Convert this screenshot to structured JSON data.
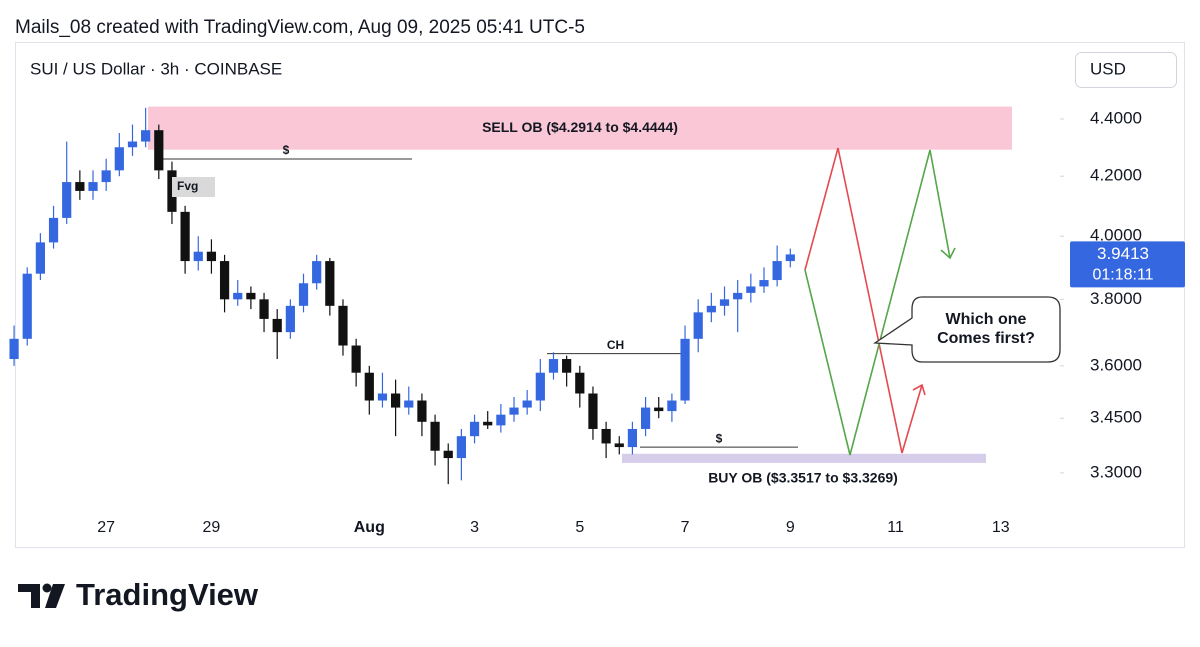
{
  "chart_data": {
    "type": "candlestick",
    "caption": "Mails_08 created with TradingView.com, Aug 09, 2025 05:41 UTC-5",
    "title": "SUI / US Dollar · 3h · COINBASE",
    "currency": "USD",
    "brand": "TradingView",
    "log_scale": true,
    "grid": false,
    "up_color": "#3568e0",
    "down_color": "#111111",
    "categories": [
      null,
      null,
      null,
      null,
      null,
      null,
      null,
      "27",
      null,
      null,
      null,
      null,
      null,
      null,
      null,
      "29",
      null,
      null,
      null,
      null,
      null,
      null,
      null,
      null,
      null,
      null,
      null,
      "Aug",
      null,
      null,
      null,
      null,
      null,
      null,
      null,
      "3",
      null,
      null,
      null,
      null,
      null,
      null,
      null,
      "5",
      null,
      null,
      null,
      null,
      null,
      null,
      null,
      "7",
      null,
      null,
      null,
      null,
      null,
      null,
      null,
      "9",
      null,
      null,
      null,
      null,
      null,
      null,
      null,
      "11",
      null,
      null,
      null,
      null,
      null,
      null,
      null,
      "13",
      null,
      null,
      null,
      null
    ],
    "open": [
      3.62,
      3.68,
      3.88,
      3.98,
      4.06,
      4.18,
      4.15,
      4.18,
      4.22,
      4.3,
      4.32,
      4.36,
      4.22,
      4.08,
      3.92,
      3.95,
      3.92,
      3.8,
      3.82,
      3.8,
      3.74,
      3.7,
      3.78,
      3.85,
      3.92,
      3.78,
      3.66,
      3.58,
      3.5,
      3.52,
      3.48,
      3.5,
      3.44,
      3.36,
      3.34,
      3.4,
      3.44,
      3.43,
      3.46,
      3.48,
      3.5,
      3.58,
      3.62,
      3.58,
      3.52,
      3.42,
      3.38,
      3.37,
      3.42,
      3.48,
      3.47,
      3.5,
      3.68,
      3.76,
      3.78,
      3.8,
      3.82,
      3.84,
      3.86,
      3.92,
      null,
      null,
      null,
      null,
      null,
      null,
      null,
      null,
      null,
      null,
      null,
      null,
      null,
      null,
      null,
      null,
      null,
      null,
      null,
      null
    ],
    "high": [
      3.72,
      3.9,
      4.01,
      4.1,
      4.32,
      4.22,
      4.22,
      4.26,
      4.35,
      4.38,
      4.44,
      4.38,
      4.25,
      4.1,
      4.0,
      3.99,
      3.94,
      3.86,
      3.84,
      3.82,
      3.77,
      3.8,
      3.88,
      3.94,
      3.93,
      3.8,
      3.68,
      3.6,
      3.58,
      3.56,
      3.54,
      3.52,
      3.46,
      3.38,
      3.42,
      3.46,
      3.47,
      3.49,
      3.51,
      3.53,
      3.62,
      3.64,
      3.63,
      3.6,
      3.54,
      3.44,
      3.4,
      3.44,
      3.51,
      3.51,
      3.52,
      3.72,
      3.8,
      3.82,
      3.84,
      3.86,
      3.88,
      3.9,
      3.97,
      3.96,
      null,
      null,
      null,
      null,
      null,
      null,
      null,
      null,
      null,
      null,
      null,
      null,
      null,
      null,
      null,
      null,
      null,
      null,
      null,
      null
    ],
    "low": [
      3.6,
      3.66,
      3.86,
      3.96,
      4.04,
      4.12,
      4.12,
      4.15,
      4.2,
      4.27,
      4.3,
      4.19,
      4.04,
      3.88,
      3.89,
      3.88,
      3.76,
      3.78,
      3.77,
      3.7,
      3.62,
      3.68,
      3.76,
      3.83,
      3.75,
      3.63,
      3.54,
      3.46,
      3.48,
      3.4,
      3.46,
      3.4,
      3.32,
      3.27,
      3.28,
      3.38,
      3.42,
      3.41,
      3.44,
      3.46,
      3.47,
      3.56,
      3.54,
      3.48,
      3.39,
      3.34,
      3.35,
      3.35,
      3.4,
      3.45,
      3.44,
      3.49,
      3.64,
      3.73,
      3.75,
      3.7,
      3.79,
      3.82,
      3.84,
      3.9,
      null,
      null,
      null,
      null,
      null,
      null,
      null,
      null,
      null,
      null,
      null,
      null,
      null,
      null,
      null,
      null,
      null,
      null,
      null,
      null
    ],
    "close": [
      3.68,
      3.88,
      3.98,
      4.06,
      4.18,
      4.15,
      4.18,
      4.22,
      4.3,
      4.32,
      4.36,
      4.22,
      4.08,
      3.92,
      3.95,
      3.92,
      3.8,
      3.82,
      3.8,
      3.74,
      3.7,
      3.78,
      3.85,
      3.92,
      3.78,
      3.66,
      3.58,
      3.5,
      3.52,
      3.48,
      3.5,
      3.44,
      3.36,
      3.34,
      3.4,
      3.44,
      3.43,
      3.46,
      3.48,
      3.5,
      3.58,
      3.62,
      3.58,
      3.52,
      3.42,
      3.38,
      3.37,
      3.42,
      3.48,
      3.47,
      3.5,
      3.68,
      3.76,
      3.78,
      3.8,
      3.82,
      3.84,
      3.86,
      3.92,
      3.9413,
      null,
      null,
      null,
      null,
      null,
      null,
      null,
      null,
      null,
      null,
      null,
      null,
      null,
      null,
      null,
      null,
      null,
      null,
      null,
      null
    ],
    "countdown": "01:18:11",
    "ylim": [
      3.202,
      4.684
    ],
    "yticks": [
      {
        "value": 3.3,
        "label": "3.3000"
      },
      {
        "value": 3.45,
        "label": "3.4500"
      },
      {
        "value": 3.6,
        "label": "3.6000"
      },
      {
        "value": 3.8,
        "label": "3.8000"
      },
      {
        "value": 4.0,
        "label": "4.0000"
      },
      {
        "value": 4.2,
        "label": "4.2000"
      },
      {
        "value": 4.4,
        "label": "4.4000"
      }
    ],
    "zones": [
      {
        "label": "SELL OB ($4.2914 to $4.4444)",
        "low": 4.2914,
        "high": 4.4444,
        "color": "#f9c7d5"
      },
      {
        "label": "BUY OB ($3.3517 to $3.3269)",
        "low": 3.3269,
        "high": 3.3517,
        "color": "#d6cdeb"
      }
    ],
    "levels": [
      {
        "label": "$",
        "value": 4.259
      },
      {
        "label": "CH",
        "value": 3.636
      },
      {
        "label": "$",
        "value": 3.37
      }
    ],
    "fvg_label": "Fvg",
    "callout": [
      "Which one",
      "Comes first?"
    ]
  }
}
